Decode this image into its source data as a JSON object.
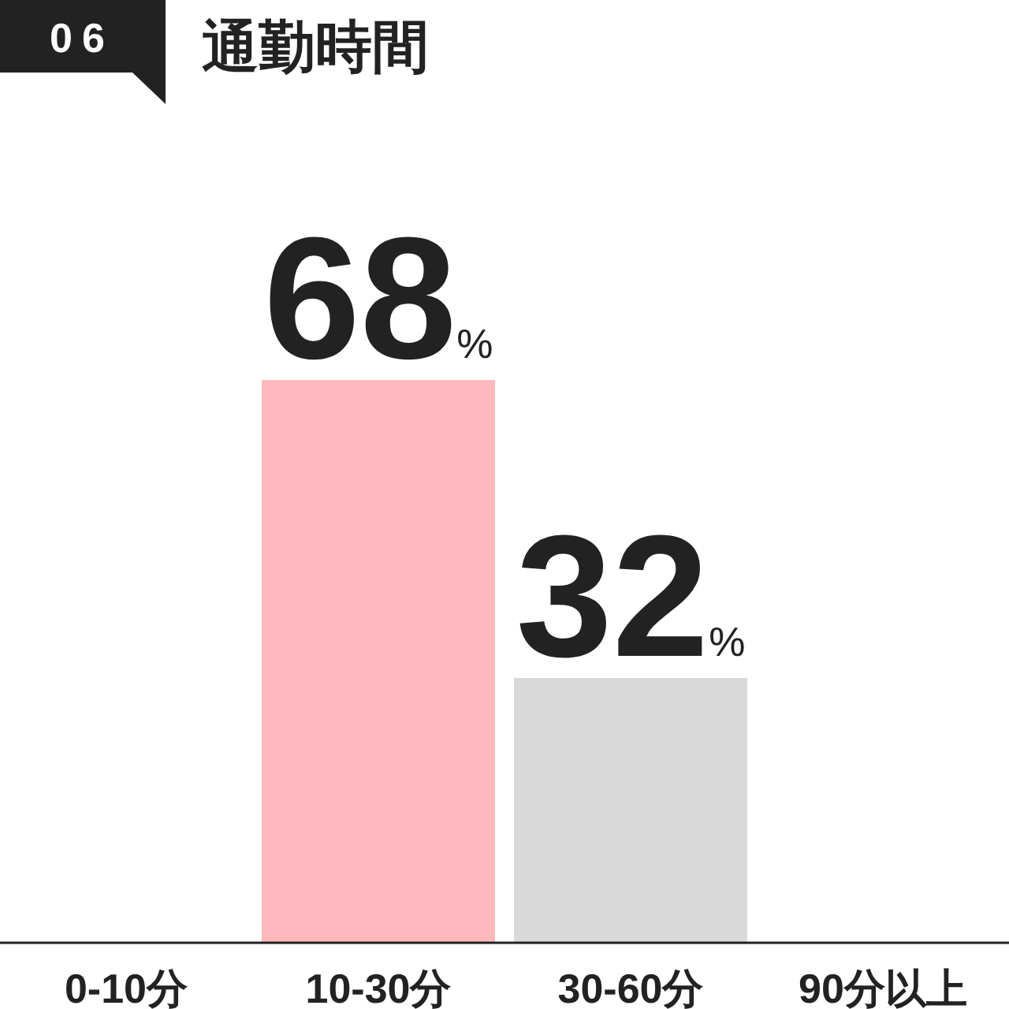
{
  "chart_data": {
    "type": "bar",
    "title": "通勤時間",
    "annotations": [
      "06"
    ],
    "categories": [
      "0-10分",
      "10-30分",
      "30-60分",
      "90分以上"
    ],
    "values": [
      0,
      68,
      32,
      0
    ],
    "colors": [
      "#ffb8bb",
      "#ffb8bb",
      "#d9d9d9",
      "#d9d9d9"
    ],
    "value_labels": [
      null,
      "68%",
      "32%",
      null
    ]
  }
}
